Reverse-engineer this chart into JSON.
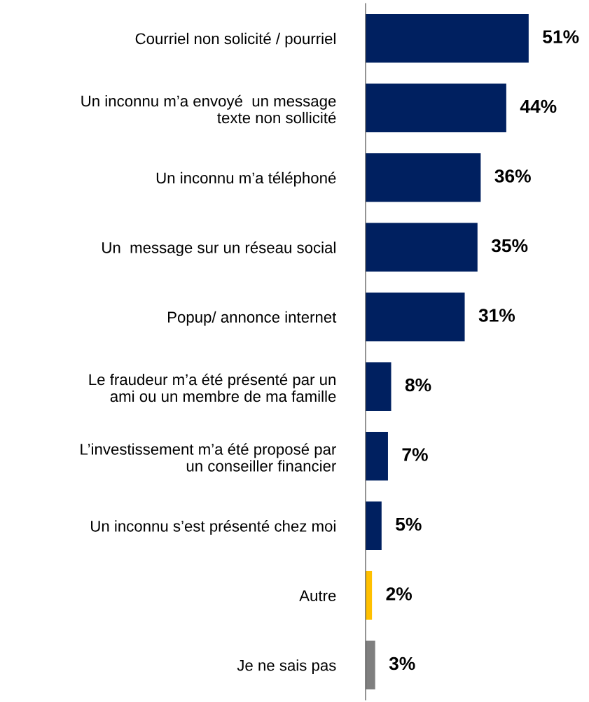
{
  "chart_data": {
    "type": "bar",
    "orientation": "horizontal",
    "data_labels": true,
    "grid": false,
    "legend": false,
    "categories": [
      "Courriel non solicité / pourriel",
      "Un inconnu m’a envoyé  un message\ntexte non sollicité",
      "Un inconnu m’a téléphoné",
      "Un  message sur un réseau social",
      "Popup/ annonce internet",
      "Le fraudeur m’a été présenté par un\nami ou un membre de ma famille",
      "L’investissement m’a été proposé par\nun conseiller financier",
      "Un inconnu s’est présenté chez moi",
      "Autre",
      "Je ne sais pas"
    ],
    "values": [
      51,
      44,
      36,
      35,
      31,
      8,
      7,
      5,
      2,
      3
    ],
    "value_labels": [
      "51%",
      "44%",
      "36%",
      "35%",
      "31%",
      "8%",
      "7%",
      "5%",
      "2%",
      "3%"
    ],
    "colors": [
      "#002060",
      "#002060",
      "#002060",
      "#002060",
      "#002060",
      "#002060",
      "#002060",
      "#002060",
      "#ffc000",
      "#7f7f7f"
    ]
  }
}
